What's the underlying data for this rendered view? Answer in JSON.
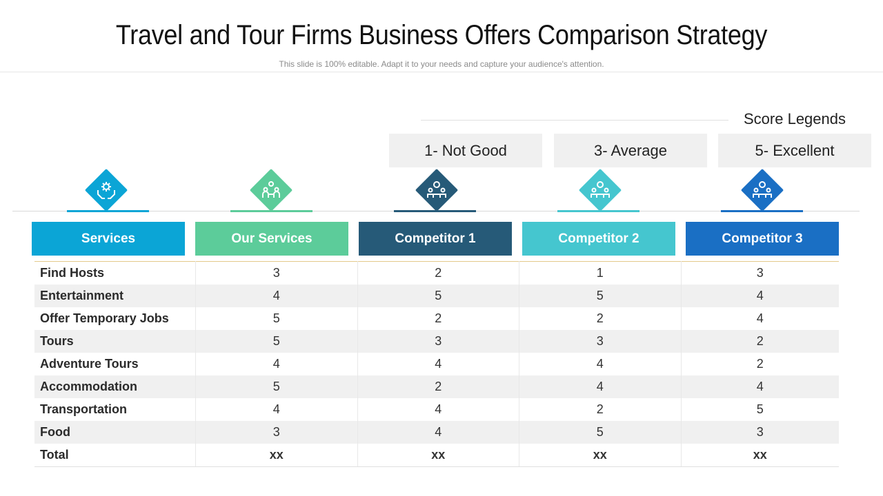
{
  "title": "Travel and Tour Firms Business Offers Comparison Strategy",
  "subtitle": "This slide is 100% editable. Adapt it to your needs and capture your audience's attention.",
  "legend": {
    "title": "Score Legends",
    "items": [
      "1- Not Good",
      "3- Average",
      "5- Excellent"
    ]
  },
  "colors": {
    "services": "#0ba5d6",
    "our_services": "#5ccc9a",
    "competitor_1": "#265a78",
    "competitor_2": "#45c6cf",
    "competitor_3": "#1a6fc4"
  },
  "icons": [
    "gear-hands-icon",
    "team-gear-icon",
    "meeting-icon",
    "meeting-icon",
    "meeting-icon"
  ],
  "columns": [
    "Services",
    "Our Services",
    "Competitor 1",
    "Competitor 2",
    "Competitor 3"
  ],
  "rows": [
    {
      "service": "Find Hosts",
      "values": [
        "3",
        "2",
        "1",
        "3"
      ]
    },
    {
      "service": "Entertainment",
      "values": [
        "4",
        "5",
        "5",
        "4"
      ]
    },
    {
      "service": "Offer Temporary Jobs",
      "values": [
        "5",
        "2",
        "2",
        "4"
      ]
    },
    {
      "service": "Tours",
      "values": [
        "5",
        "3",
        "3",
        "2"
      ]
    },
    {
      "service": "Adventure Tours",
      "values": [
        "4",
        "4",
        "4",
        "2"
      ]
    },
    {
      "service": "Accommodation",
      "values": [
        "5",
        "2",
        "4",
        "4"
      ]
    },
    {
      "service": "Transportation",
      "values": [
        "4",
        "4",
        "2",
        "5"
      ]
    },
    {
      "service": "Food",
      "values": [
        "3",
        "4",
        "5",
        "3"
      ]
    }
  ],
  "total": {
    "service": "Total",
    "values": [
      "xx",
      "xx",
      "xx",
      "xx"
    ]
  }
}
